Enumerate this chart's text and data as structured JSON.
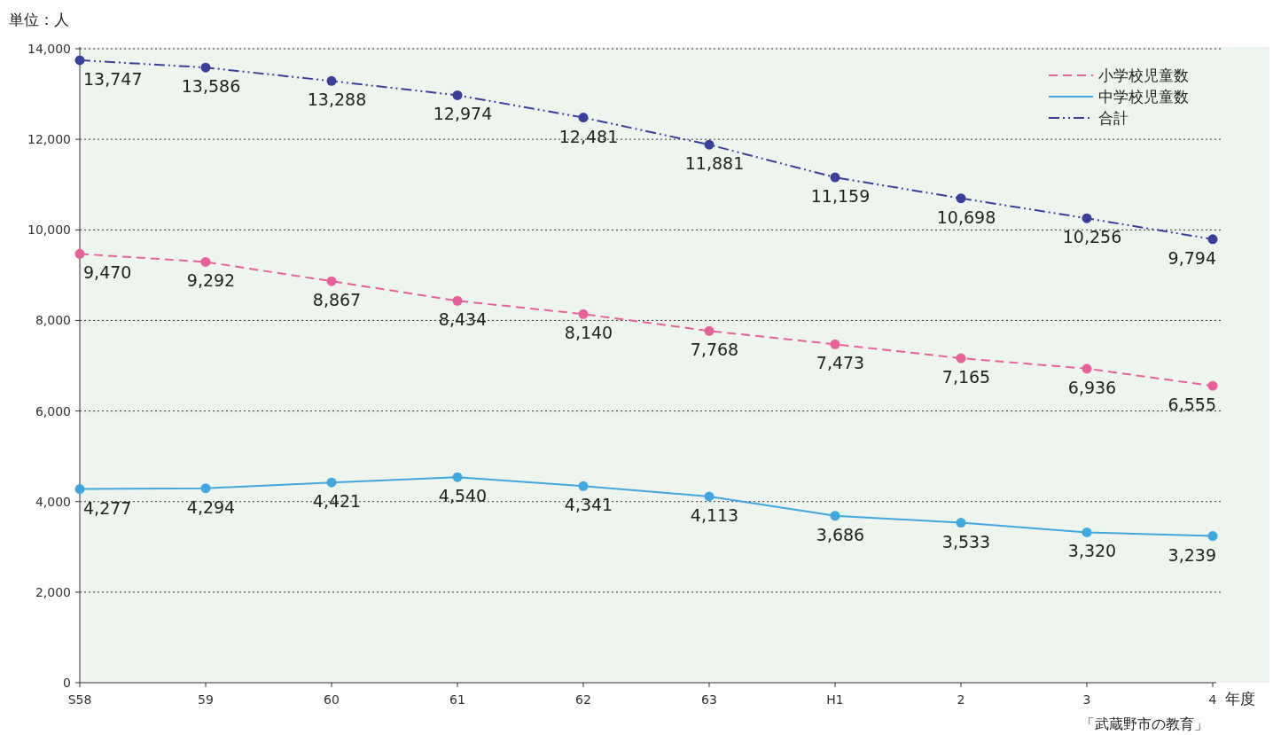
{
  "chart_data": {
    "type": "line",
    "ylabel": "単位：人",
    "xlabel": "年度",
    "categories": [
      "S58",
      "59",
      "60",
      "61",
      "62",
      "63",
      "H1",
      "2",
      "3",
      "4"
    ],
    "series": [
      {
        "name": "小学校児童数",
        "color": "#e8609a",
        "line_style": "dashed",
        "values": [
          9470,
          9292,
          8867,
          8434,
          8140,
          7768,
          7473,
          7165,
          6936,
          6555
        ],
        "value_labels": [
          "9,470",
          "9,292",
          "8,867",
          "8,434",
          "8,140",
          "7,768",
          "7,473",
          "7,165",
          "6,936",
          "6,555"
        ]
      },
      {
        "name": "中学校児童数",
        "color": "#3fa8e0",
        "line_style": "solid",
        "values": [
          4277,
          4294,
          4421,
          4540,
          4341,
          4113,
          3686,
          3533,
          3320,
          3239
        ],
        "value_labels": [
          "4,277",
          "4,294",
          "4,421",
          "4,540",
          "4,341",
          "4,113",
          "3,686",
          "3,533",
          "3,320",
          "3,239"
        ]
      },
      {
        "name": "合計",
        "color": "#3a3f9e",
        "line_style": "dashdot",
        "values": [
          13747,
          13586,
          13288,
          12974,
          12481,
          11881,
          11159,
          10698,
          10256,
          9794
        ],
        "value_labels": [
          "13,747",
          "13,586",
          "13,288",
          "12,974",
          "12,481",
          "11,881",
          "11,159",
          "10,698",
          "10,256",
          "9,794"
        ]
      }
    ],
    "ylim": [
      0,
      14000
    ],
    "yticks": [
      0,
      {
        "value": 2000,
        "label": "2,000"
      },
      {
        "value": 4000,
        "label": "4,000"
      },
      {
        "value": 6000,
        "label": "6,000"
      },
      {
        "value": 8000,
        "label": "8,000"
      },
      {
        "value": 10000,
        "label": "10,000"
      },
      {
        "value": 12000,
        "label": "12,000"
      },
      {
        "value": 14000,
        "label": "14,000"
      }
    ],
    "grid": "y",
    "legend": "top right",
    "marker": "circle",
    "annotations": [
      "「武蔵野市の教育」"
    ]
  }
}
